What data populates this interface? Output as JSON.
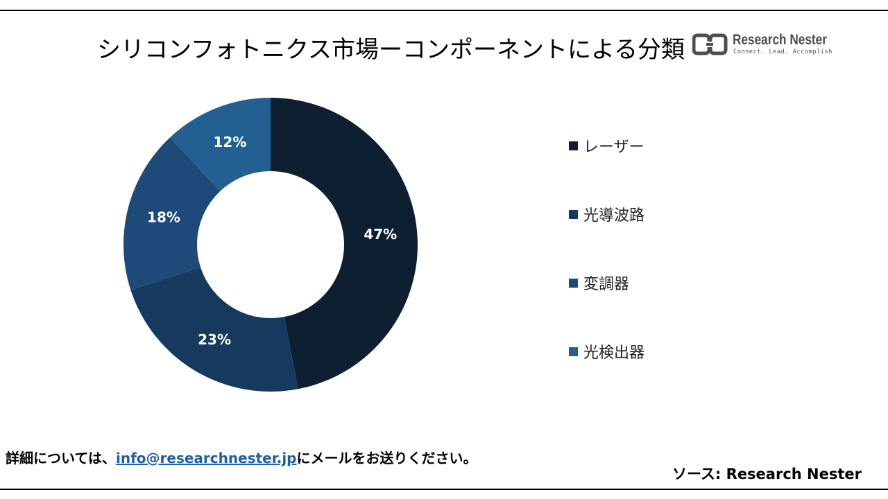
{
  "header": {
    "title": "シリコンフォトニクス市場ーコンポーネントによる分類"
  },
  "logo": {
    "name": "Research Nester",
    "tagline": "Connect. Lead. Accomplish",
    "icon": "research-nester-logo-icon",
    "color": "#4a4f55"
  },
  "chart_data": {
    "type": "pie",
    "donut": true,
    "title": "シリコンフォトニクス市場ーコンポーネントによる分類",
    "categories": [
      "レーザー",
      "光導波路",
      "変調器",
      "光検出器"
    ],
    "values": [
      47,
      23,
      18,
      12
    ],
    "data_labels": [
      "47%",
      "23%",
      "18%",
      "12%"
    ],
    "colors": [
      "#0d1f30",
      "#163a5e",
      "#1d4a78",
      "#245f92"
    ],
    "legend_position": "right",
    "start": "top",
    "direction": "clockwise"
  },
  "footer": {
    "note_prefix": "詳細については、",
    "email": "info@researchnester.jp",
    "note_suffix": "にメールをお送りください。",
    "source": "ソース: Research Nester"
  }
}
